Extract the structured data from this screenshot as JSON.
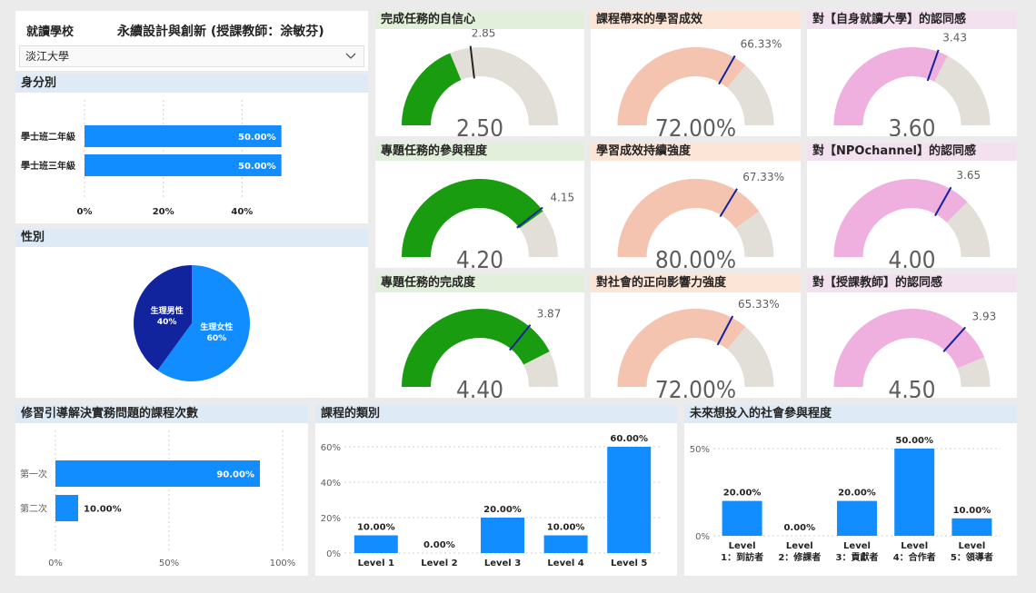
{
  "header": {
    "label": "就讀學校",
    "title": "永續設計與創新 (授課教師：涂敏芬)",
    "selected_school": "淡江大學",
    "chevron_icon": "chevron-down-icon"
  },
  "identity_chart": {
    "section_title": "身分別",
    "chart_data": {
      "type": "bar",
      "orientation": "horizontal",
      "categories": [
        "學士班二年級",
        "學士班三年級"
      ],
      "values": [
        50.0,
        50.0
      ],
      "value_labels": [
        "50.00%",
        "50.00%"
      ],
      "x_ticks": [
        "0%",
        "20%",
        "40%"
      ],
      "xlim": [
        0,
        60
      ],
      "bar_color": "#118dff"
    }
  },
  "gender_chart": {
    "section_title": "性別",
    "chart_data": {
      "type": "pie",
      "slices": [
        {
          "label": "生理女性",
          "pct_label": "60%",
          "value": 60,
          "color": "#118dff"
        },
        {
          "label": "生理男性",
          "pct_label": "40%",
          "value": 40,
          "color": "#12239e"
        }
      ]
    }
  },
  "gauges": [
    {
      "title": "完成任務的自信心",
      "value_label": "2.50",
      "value": 2.5,
      "min": 1,
      "max": 5,
      "target": 2.85,
      "target_label": "2.85",
      "fill": "#1a9c10",
      "target_color": "#252423",
      "header_class": "green"
    },
    {
      "title": "課程帶來的學習成效",
      "value_label": "72.00%",
      "value": 72,
      "min": 0,
      "max": 100,
      "target": 66.33,
      "target_label": "66.33%",
      "fill": "#f4c4b0",
      "target_color": "#12239e",
      "header_class": "orange"
    },
    {
      "title": "對【自身就讀大學】的認同感",
      "value_label": "3.60",
      "value": 3.6,
      "min": 1,
      "max": 5,
      "target": 3.43,
      "target_label": "3.43",
      "fill": "#f0b0df",
      "target_color": "#12239e",
      "header_class": "pink"
    },
    {
      "title": "專題任務的參與程度",
      "value_label": "4.20",
      "value": 4.2,
      "min": 1,
      "max": 5,
      "target": 4.15,
      "target_label": "4.15",
      "fill": "#1a9c10",
      "target_color": "#12239e",
      "header_class": "green"
    },
    {
      "title": "學習成效持續強度",
      "value_label": "80.00%",
      "value": 80,
      "min": 0,
      "max": 100,
      "target": 67.33,
      "target_label": "67.33%",
      "fill": "#f4c4b0",
      "target_color": "#12239e",
      "header_class": "orange"
    },
    {
      "title": "對【NPOchannel】的認同感",
      "value_label": "4.00",
      "value": 4.0,
      "min": 1,
      "max": 5,
      "target": 3.65,
      "target_label": "3.65",
      "fill": "#f0b0df",
      "target_color": "#12239e",
      "header_class": "pink"
    },
    {
      "title": "專題任務的完成度",
      "value_label": "4.40",
      "value": 4.4,
      "min": 1,
      "max": 5,
      "target": 3.87,
      "target_label": "3.87",
      "fill": "#1a9c10",
      "target_color": "#12239e",
      "header_class": "green"
    },
    {
      "title": "對社會的正向影響力強度",
      "value_label": "72.00%",
      "value": 72,
      "min": 0,
      "max": 100,
      "target": 65.33,
      "target_label": "65.33%",
      "fill": "#f4c4b0",
      "target_color": "#12239e",
      "header_class": "orange"
    },
    {
      "title": "對【授課教師】的認同感",
      "value_label": "4.50",
      "value": 4.5,
      "min": 1,
      "max": 5,
      "target": 3.93,
      "target_label": "3.93",
      "fill": "#f0b0df",
      "target_color": "#12239e",
      "header_class": "pink"
    }
  ],
  "gauge_track_color": "#e2ded8",
  "courses_count_chart": {
    "section_title": "修習引導解決實務問題的課程次數",
    "chart_data": {
      "type": "bar",
      "orientation": "horizontal",
      "categories": [
        "第一次",
        "第二次"
      ],
      "values": [
        90.0,
        10.0
      ],
      "value_labels": [
        "90.00%",
        "10.00%"
      ],
      "x_ticks": [
        "0%",
        "50%",
        "100%"
      ],
      "xlim": [
        0,
        100
      ],
      "bar_color": "#118dff"
    }
  },
  "course_type_chart": {
    "section_title": "課程的類別",
    "chart_data": {
      "type": "bar",
      "categories": [
        "Level 1",
        "Level 2",
        "Level 3",
        "Level 4",
        "Level 5"
      ],
      "values": [
        10.0,
        0.0,
        20.0,
        10.0,
        60.0
      ],
      "value_labels": [
        "10.00%",
        "0.00%",
        "20.00%",
        "10.00%",
        "60.00%"
      ],
      "y_ticks": [
        "0%",
        "20%",
        "40%",
        "60%"
      ],
      "ylim": [
        0,
        60
      ],
      "bar_color": "#118dff"
    }
  },
  "social_chart": {
    "section_title": "未來想投入的社會參與程度",
    "chart_data": {
      "type": "bar",
      "categories": [
        "Level 1：到訪者",
        "Level 2：修課者",
        "Level 3：貢獻者",
        "Level 4：合作者",
        "Level 5：領導者"
      ],
      "category_lines": [
        [
          "Level",
          "1：到訪者"
        ],
        [
          "Level",
          "2：修課者"
        ],
        [
          "Level",
          "3：貢獻者"
        ],
        [
          "Level",
          "4：合作者"
        ],
        [
          "Level",
          "5：領導者"
        ]
      ],
      "values": [
        20.0,
        0.0,
        20.0,
        50.0,
        10.0
      ],
      "value_labels": [
        "20.00%",
        "0.00%",
        "20.00%",
        "50.00%",
        "10.00%"
      ],
      "y_ticks": [
        "0%",
        "50%"
      ],
      "ylim": [
        0,
        50
      ],
      "bar_color": "#118dff"
    }
  }
}
